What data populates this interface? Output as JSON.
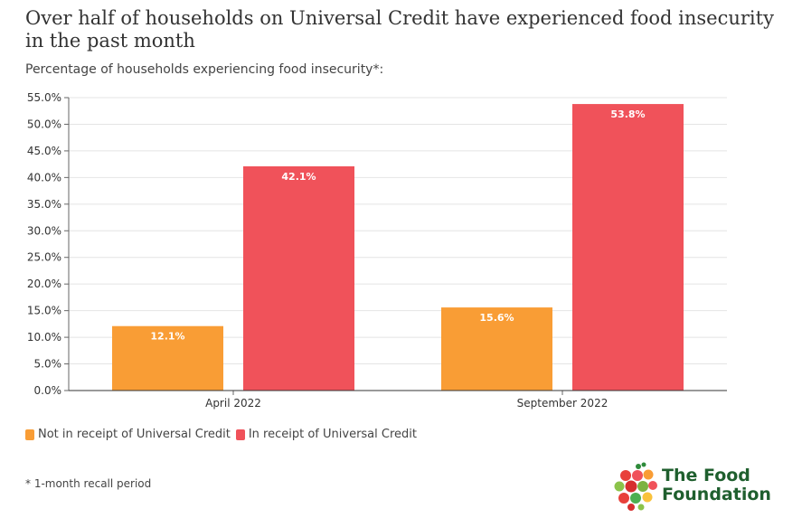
{
  "header": {
    "title": "Over half of households on Universal Credit have experienced food insecurity in the past month",
    "subtitle": "Percentage of households experiencing food insecurity*:"
  },
  "chart_data": {
    "type": "bar",
    "categories": [
      "April 2022",
      "September 2022"
    ],
    "series": [
      {
        "name": "Not in receipt of Universal Credit",
        "values": [
          12.1,
          15.6
        ],
        "labels": [
          "12.1%",
          "15.6%"
        ],
        "color": "#f99d35"
      },
      {
        "name": "In receipt of Universal Credit",
        "values": [
          42.1,
          53.8
        ],
        "labels": [
          "42.1%",
          "53.8%"
        ],
        "color": "#f0525a"
      }
    ],
    "ylim": [
      0,
      55
    ],
    "yticks": [
      0,
      5,
      10,
      15,
      20,
      25,
      30,
      35,
      40,
      45,
      50,
      55
    ],
    "ytick_labels": [
      "0.0%",
      "5.0%",
      "10.0%",
      "15.0%",
      "20.0%",
      "25.0%",
      "30.0%",
      "35.0%",
      "40.0%",
      "45.0%",
      "50.0%",
      "55.0%"
    ],
    "grid": true,
    "legend_position": "bottom-left"
  },
  "legend": {
    "items": [
      {
        "label": "Not in receipt of Universal Credit",
        "color": "#f99d35"
      },
      {
        "label": "In receipt of Universal Credit",
        "color": "#f0525a"
      }
    ]
  },
  "footnote": "* 1-month recall period",
  "logo": {
    "line1": "The Food",
    "line2": "Foundation",
    "text_color": "#1f5f2e"
  }
}
